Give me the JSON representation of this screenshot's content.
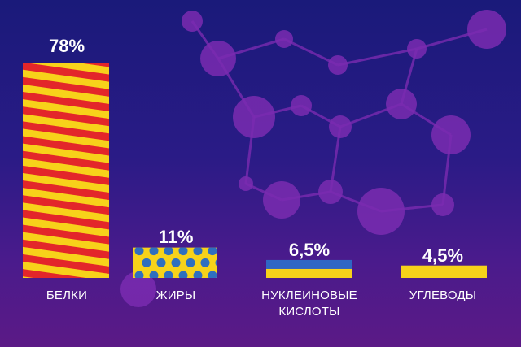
{
  "colors": {
    "stripe_red": "#e3262a",
    "stripe_yellow": "#f7d21a",
    "dot_blue": "#2f6fbf",
    "flag_blue": "#2f66c4",
    "flag_yellow": "#f7d21a",
    "molecule": "#7a2bb0",
    "text": "#ffffff"
  },
  "chart_data": {
    "type": "bar",
    "title": "",
    "xlabel": "",
    "ylabel": "",
    "ylim": [
      0,
      78
    ],
    "categories": [
      "БЕЛКИ",
      "ЖИРЫ",
      "НУКЛЕИНОВЫЕ КИСЛОТЫ",
      "УГЛЕВОДЫ"
    ],
    "values": [
      78,
      11,
      6.5,
      4.5
    ],
    "value_labels": [
      "78%",
      "11%",
      "6,5%",
      "4,5%"
    ],
    "category_lines": [
      [
        "БЕЛКИ"
      ],
      [
        "ЖИРЫ"
      ],
      [
        "НУКЛЕИНОВЫЕ",
        "КИСЛОТЫ"
      ],
      [
        "УГЛЕВОДЫ"
      ]
    ],
    "fill_styles": [
      "red-yellow-stripes",
      "yellow-blue-dots",
      "blue-yellow-flag",
      "solid-yellow"
    ]
  }
}
